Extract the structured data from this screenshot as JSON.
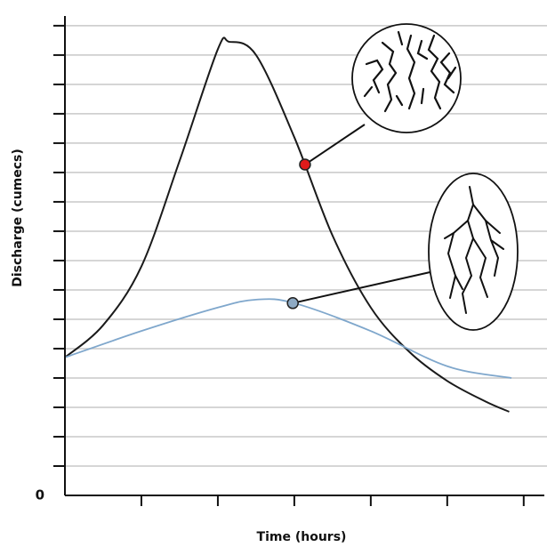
{
  "chart_data": {
    "type": "line",
    "ylabel": "Discharge (cumecs)",
    "xlabel": "Time (hours)",
    "xlim": [
      0,
      6.2
    ],
    "ylim": [
      0,
      16.3
    ],
    "yticks": [
      0
    ],
    "ytick_marks": [
      1,
      2,
      3,
      4,
      5,
      6,
      7,
      8,
      9,
      10,
      11,
      12,
      13,
      14,
      15,
      16
    ],
    "xtick_marks": [
      1,
      2,
      3,
      4,
      5,
      6
    ],
    "grid": true,
    "series": [
      {
        "color": "#1a1a1a",
        "x": [
          0,
          0.5,
          1,
          1.5,
          2,
          2.15,
          2.5,
          3,
          3.5,
          4,
          4.5,
          5,
          5.5,
          5.81
        ],
        "values": [
          4.7,
          5.8,
          7.8,
          11.4,
          15.2,
          15.45,
          15.0,
          12.2,
          8.85,
          6.4,
          4.9,
          3.9,
          3.2,
          2.85
        ],
        "highlight": {
          "x": 3.14,
          "y": 11.27,
          "color": "#e01b1b"
        }
      },
      {
        "color": "#7fa7cc",
        "x": [
          0,
          1,
          2,
          2.5,
          3,
          4,
          5,
          5.84
        ],
        "values": [
          4.7,
          5.6,
          6.4,
          6.67,
          6.55,
          5.6,
          4.4,
          4.0
        ],
        "highlight": {
          "x": 2.98,
          "y": 6.55,
          "color": "#8eaac4"
        }
      }
    ]
  }
}
